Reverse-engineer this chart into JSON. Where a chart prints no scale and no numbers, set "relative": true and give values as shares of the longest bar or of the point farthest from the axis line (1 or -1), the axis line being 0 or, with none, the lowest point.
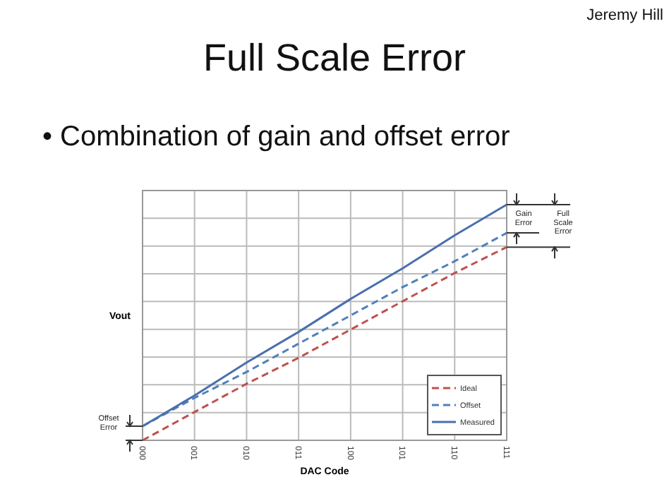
{
  "chart_data": {
    "type": "line",
    "title": "Full Scale Error",
    "subtitle": "• Combination of gain and offset error",
    "xlabel": "DAC Code",
    "ylabel": "Vout",
    "relative": true,
    "grid": true,
    "legend": "bottom right",
    "categories": [
      "000",
      "001",
      "010",
      "011",
      "100",
      "101",
      "110",
      "111"
    ],
    "series": [
      {
        "name": "Ideal",
        "color": "#c0504d",
        "line_style": "dashed",
        "values": [
          0,
          0.12,
          0.24,
          0.35,
          0.47,
          0.59,
          0.71,
          0.82
        ]
      },
      {
        "name": "Offset",
        "color": "#4f81bd",
        "line_style": "dashed",
        "values": [
          0.06,
          0.18,
          0.29,
          0.41,
          0.53,
          0.65,
          0.76,
          0.88
        ]
      },
      {
        "name": "Measured",
        "color": "#4a6fae",
        "line_style": "solid",
        "values": [
          0.06,
          0.19,
          0.33,
          0.46,
          0.6,
          0.73,
          0.87,
          1.0
        ]
      }
    ],
    "annotations": [
      "Gain Error",
      "Full Scale Error",
      "Offset Error",
      "Jeremy Hill"
    ]
  }
}
